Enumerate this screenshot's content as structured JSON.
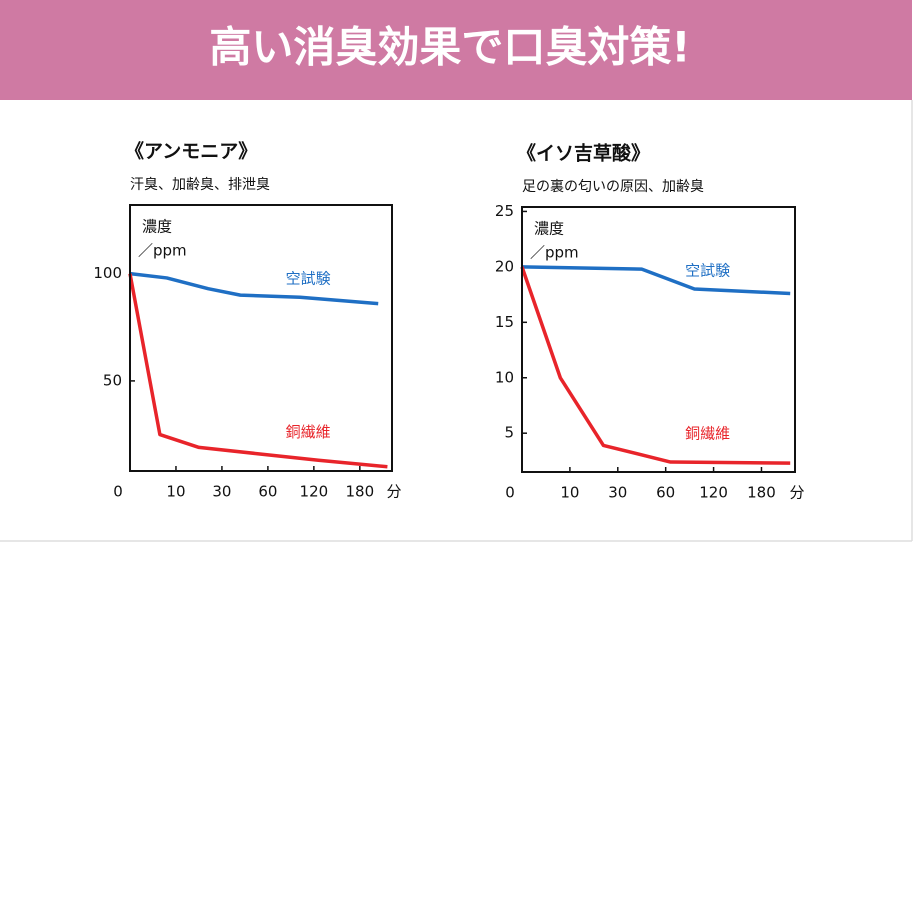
{
  "banner": {
    "title": "高い消臭効果で口臭対策!"
  },
  "chart_data": [
    {
      "type": "line",
      "title": "《アンモニア》",
      "subtitle": "汗臭、加齢臭、排泄臭",
      "ylabel": "濃度",
      "yunit": "／ppm",
      "xunit": "分",
      "xlim": [
        0,
        5.7
      ],
      "xticks": [
        {
          "value": 0,
          "label": "0"
        },
        {
          "value": 1,
          "label": "10"
        },
        {
          "value": 2,
          "label": "30"
        },
        {
          "value": 3,
          "label": "60"
        },
        {
          "value": 4,
          "label": "120"
        },
        {
          "value": 5,
          "label": "180"
        }
      ],
      "ylim": [
        8,
        132
      ],
      "yticks": [
        50,
        100
      ],
      "series": [
        {
          "name": "空試験",
          "color": "#1f6fc4",
          "x": [
            0,
            0.8,
            1.7,
            2.4,
            3.7,
            5.4
          ],
          "values": [
            100,
            98,
            93,
            90,
            89,
            86
          ]
        },
        {
          "name": "銅繊維",
          "color": "#e8242a",
          "x": [
            0,
            0.65,
            1.5,
            2.8,
            4.1,
            5.6
          ],
          "values": [
            100,
            25,
            19,
            16,
            13,
            10
          ]
        }
      ]
    },
    {
      "type": "line",
      "title": "《イソ吉草酸》",
      "subtitle": "足の裏の匂いの原因、加齢臭",
      "ylabel": "濃度",
      "yunit": "／ppm",
      "xunit": "分",
      "xlim": [
        0,
        5.7
      ],
      "xticks": [
        {
          "value": 0,
          "label": "0"
        },
        {
          "value": 1,
          "label": "10"
        },
        {
          "value": 2,
          "label": "30"
        },
        {
          "value": 3,
          "label": "60"
        },
        {
          "value": 4,
          "label": "120"
        },
        {
          "value": 5,
          "label": "180"
        }
      ],
      "ylim": [
        1.5,
        25.4
      ],
      "yticks": [
        5,
        10,
        15,
        20,
        25
      ],
      "series": [
        {
          "name": "空試験",
          "color": "#1f6fc4",
          "x": [
            0,
            2.5,
            3.6,
            5.6
          ],
          "values": [
            20,
            19.8,
            18,
            17.6
          ]
        },
        {
          "name": "銅繊維",
          "color": "#e8242a",
          "x": [
            0,
            0.8,
            1.7,
            3.1,
            5.6
          ],
          "values": [
            20,
            10,
            3.9,
            2.4,
            2.3
          ]
        }
      ]
    }
  ]
}
